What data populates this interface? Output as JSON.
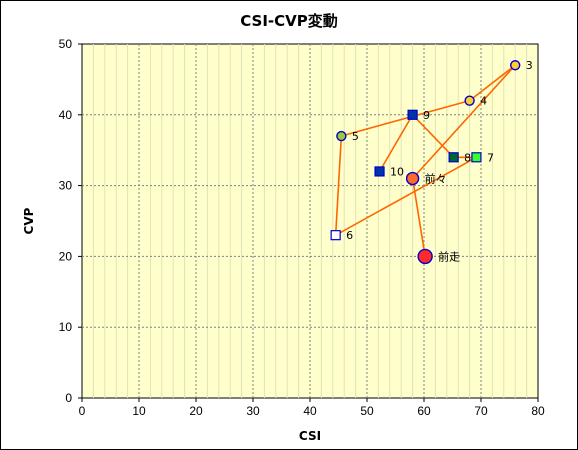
{
  "chart_data": {
    "type": "scatter",
    "title": "CSI-CVP変動",
    "xlabel": "CSI",
    "ylabel": "CVP",
    "xlim": [
      0,
      80
    ],
    "ylim": [
      0,
      50
    ],
    "xticks": [
      0,
      10,
      20,
      30,
      40,
      50,
      60,
      70,
      80
    ],
    "yticks": [
      0,
      10,
      20,
      30,
      40,
      50
    ],
    "grid": true,
    "colors": {
      "plot_bg": "#ffffcc",
      "grid": "#808080",
      "line": "#ff6600",
      "marker_edge": "#0000cc"
    },
    "path_order": [
      "前走",
      "前々",
      "3",
      "4",
      "5",
      "6",
      "7",
      "8",
      "9",
      "10"
    ],
    "points": [
      {
        "label": "前走",
        "x": 60.2,
        "y": 20.0,
        "shape": "circle",
        "size": "large",
        "fill": "#ff2a2a"
      },
      {
        "label": "前々",
        "x": 58.0,
        "y": 31.0,
        "shape": "circle",
        "size": "medium",
        "fill": "#ff6a2a"
      },
      {
        "label": "3",
        "x": 76.0,
        "y": 47.0,
        "shape": "circle",
        "size": "small",
        "fill": "#ffcc33"
      },
      {
        "label": "4",
        "x": 68.0,
        "y": 42.0,
        "shape": "circle",
        "size": "small",
        "fill": "#ffcc33"
      },
      {
        "label": "5",
        "x": 45.5,
        "y": 37.0,
        "shape": "circle",
        "size": "small",
        "fill": "#99cc33"
      },
      {
        "label": "6",
        "x": 44.5,
        "y": 23.0,
        "shape": "square",
        "size": "small",
        "fill": "#ffffff"
      },
      {
        "label": "7",
        "x": 69.2,
        "y": 34.0,
        "shape": "square",
        "size": "small",
        "fill": "#33ff33"
      },
      {
        "label": "8",
        "x": 65.2,
        "y": 34.0,
        "shape": "square",
        "size": "small",
        "fill": "#006633"
      },
      {
        "label": "9",
        "x": 58.0,
        "y": 40.0,
        "shape": "square",
        "size": "small",
        "fill": "#0033aa"
      },
      {
        "label": "10",
        "x": 52.2,
        "y": 32.0,
        "shape": "square",
        "size": "small",
        "fill": "#0033aa"
      }
    ]
  }
}
